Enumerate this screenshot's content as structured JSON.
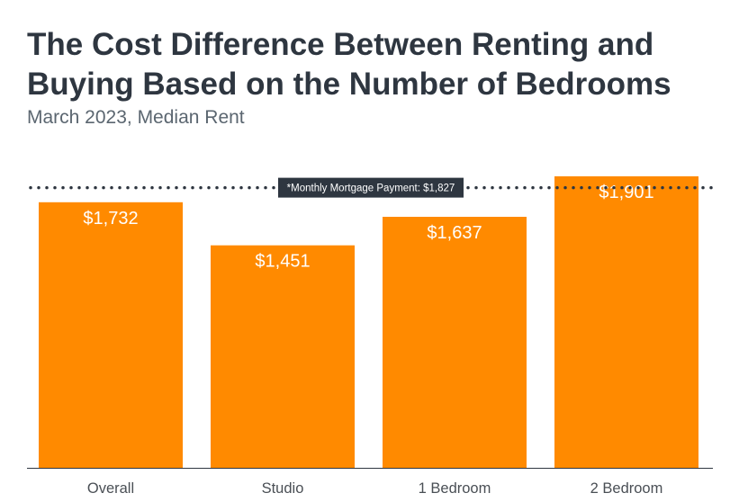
{
  "chart_data": {
    "type": "bar",
    "title": "The Cost Difference Between Renting and Buying Based on the Number of Bedrooms",
    "subtitle": "March 2023, Median Rent",
    "categories": [
      "Overall",
      "Studio",
      "1 Bedroom",
      "2 Bedroom"
    ],
    "values": [
      1732,
      1451,
      1637,
      1901
    ],
    "value_labels": [
      "$1,732",
      "$1,451",
      "$1,637",
      "$1,901"
    ],
    "ylim": [
      0,
      1901
    ],
    "bar_color": "#ff8a00",
    "grid": false,
    "reference_line": {
      "value": 1827,
      "label": "*Monthly Mortgage Payment: $1,827",
      "style": "dotted",
      "color": "#2e3640"
    }
  }
}
